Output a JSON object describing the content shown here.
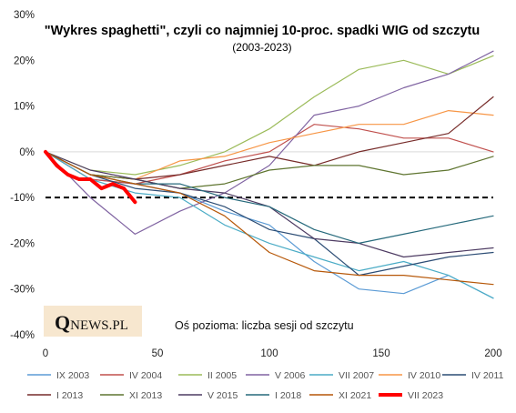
{
  "chart_data": {
    "type": "line",
    "title": "\"Wykres spaghetti\", czyli co najmniej 10-proc. spadki WIG od szczytu",
    "subtitle": "(2003-2023)",
    "xlabel": "Oś pozioma: liczba sesji od szczytu",
    "ylabel": "",
    "xlim": [
      0,
      200
    ],
    "ylim": [
      -40,
      30
    ],
    "x_ticks": [
      "0",
      "50",
      "100",
      "150",
      "200"
    ],
    "y_ticks": [
      "30%",
      "20%",
      "10%",
      "0%",
      "-10%",
      "-20%",
      "-30%",
      "-40%"
    ],
    "threshold": -10,
    "grid": false,
    "legend_position": "bottom",
    "logo_text": "QNEWS.PL",
    "series": [
      {
        "name": "IX 2003",
        "color": "#5b9bd5",
        "x": [
          0,
          20,
          40,
          60,
          80,
          100,
          120,
          140,
          160,
          180,
          200
        ],
        "y": [
          0,
          -6,
          -7,
          -9,
          -13,
          -16,
          -24,
          -30,
          -31,
          -27,
          -32
        ]
      },
      {
        "name": "IV 2004",
        "color": "#c0504d",
        "x": [
          0,
          20,
          40,
          60,
          80,
          100,
          120,
          140,
          160,
          180,
          200
        ],
        "y": [
          0,
          -6,
          -7,
          -5,
          -2,
          0,
          6,
          5,
          3,
          3,
          0
        ]
      },
      {
        "name": "II 2005",
        "color": "#9bbb59",
        "x": [
          0,
          20,
          40,
          60,
          80,
          100,
          120,
          140,
          160,
          180,
          200
        ],
        "y": [
          0,
          -4,
          -5,
          -3,
          0,
          5,
          12,
          18,
          20,
          17,
          21
        ]
      },
      {
        "name": "V 2006",
        "color": "#8064a2",
        "x": [
          0,
          20,
          40,
          60,
          80,
          100,
          120,
          140,
          160,
          180,
          200
        ],
        "y": [
          0,
          -10,
          -18,
          -13,
          -9,
          -3,
          8,
          10,
          14,
          17,
          22
        ]
      },
      {
        "name": "VII 2007",
        "color": "#4bacc6",
        "x": [
          0,
          20,
          40,
          60,
          80,
          100,
          120,
          140,
          160,
          180,
          200
        ],
        "y": [
          0,
          -6,
          -9,
          -10,
          -16,
          -20,
          -23,
          -26,
          -24,
          -27,
          -32
        ]
      },
      {
        "name": "IV 2010",
        "color": "#f79646",
        "x": [
          0,
          20,
          40,
          60,
          80,
          100,
          120,
          140,
          160,
          180,
          200
        ],
        "y": [
          0,
          -5,
          -6,
          -2,
          -1,
          2,
          4,
          6,
          6,
          9,
          8
        ]
      },
      {
        "name": "IV 2011",
        "color": "#2c4d75",
        "x": [
          0,
          20,
          40,
          60,
          80,
          100,
          120,
          140,
          160,
          180,
          200
        ],
        "y": [
          0,
          -5,
          -8,
          -9,
          -12,
          -17,
          -19,
          -27,
          -25,
          -23,
          -22
        ]
      },
      {
        "name": "I 2013",
        "color": "#772c2a",
        "x": [
          0,
          20,
          40,
          60,
          80,
          100,
          120,
          140,
          160,
          180,
          200
        ],
        "y": [
          0,
          -5,
          -6,
          -5,
          -3,
          -1,
          -3,
          0,
          2,
          4,
          12
        ]
      },
      {
        "name": "XI 2013",
        "color": "#5f7530",
        "x": [
          0,
          20,
          40,
          60,
          80,
          100,
          120,
          140,
          160,
          180,
          200
        ],
        "y": [
          0,
          -5,
          -6,
          -8,
          -7,
          -4,
          -3,
          -3,
          -5,
          -4,
          -1
        ]
      },
      {
        "name": "V 2015",
        "color": "#4d3b62",
        "x": [
          0,
          20,
          40,
          60,
          80,
          100,
          120,
          140,
          160,
          180,
          200
        ],
        "y": [
          0,
          -4,
          -6,
          -8,
          -9,
          -12,
          -19,
          -20,
          -23,
          -22,
          -21
        ]
      },
      {
        "name": "I 2018",
        "color": "#276a7c",
        "x": [
          0,
          20,
          40,
          60,
          80,
          100,
          120,
          140,
          160,
          180,
          200
        ],
        "y": [
          0,
          -5,
          -7,
          -7,
          -10,
          -12,
          -17,
          -20,
          -18,
          -16,
          -14
        ]
      },
      {
        "name": "XI 2021",
        "color": "#b65708",
        "x": [
          0,
          20,
          40,
          60,
          80,
          100,
          120,
          140,
          160,
          180,
          200
        ],
        "y": [
          0,
          -5,
          -7,
          -9,
          -14,
          -22,
          -26,
          -27,
          -27,
          -28,
          -29
        ]
      },
      {
        "name": "VII 2023",
        "color": "#ff0000",
        "bold": true,
        "x": [
          0,
          5,
          10,
          15,
          20,
          25,
          30,
          35,
          40
        ],
        "y": [
          0,
          -3,
          -5,
          -6,
          -6,
          -8,
          -7,
          -8,
          -11
        ]
      }
    ]
  }
}
